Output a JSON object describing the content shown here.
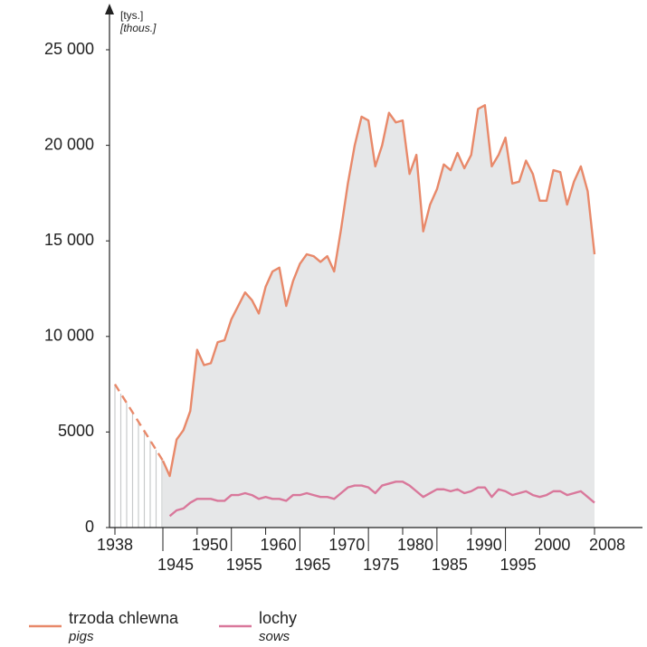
{
  "chart_data": {
    "type": "line",
    "axis_unit": "[tys.]",
    "axis_unit_en": "[thous.]",
    "xlim": [
      1938,
      2008
    ],
    "ylim": [
      0,
      25000
    ],
    "yticks": [
      0,
      5000,
      {
        "value": 10000,
        "label": "10 000"
      },
      {
        "value": 15000,
        "label": "15 000"
      },
      {
        "value": 20000,
        "label": "20 000"
      },
      {
        "value": 25000,
        "label": "25 000"
      }
    ],
    "xticks": [
      1938,
      1945,
      1950,
      1955,
      1960,
      1965,
      1970,
      1975,
      1980,
      1985,
      1990,
      1995,
      2000,
      2008
    ],
    "dashed_until": 1945,
    "area_fill": "#e6e7e8",
    "series": [
      {
        "name": "trzoda chlewna",
        "name_en": "pigs",
        "color": "#e8896a",
        "x": [
          1938,
          1945,
          1946,
          1947,
          1948,
          1949,
          1950,
          1951,
          1952,
          1953,
          1954,
          1955,
          1956,
          1957,
          1958,
          1959,
          1960,
          1961,
          1962,
          1963,
          1964,
          1965,
          1966,
          1967,
          1968,
          1969,
          1970,
          1971,
          1972,
          1973,
          1974,
          1975,
          1976,
          1977,
          1978,
          1979,
          1980,
          1981,
          1982,
          1983,
          1984,
          1985,
          1986,
          1987,
          1988,
          1989,
          1990,
          1991,
          1992,
          1993,
          1994,
          1995,
          1996,
          1997,
          1998,
          1999,
          2000,
          2001,
          2002,
          2003,
          2004,
          2005,
          2006,
          2007,
          2008
        ],
        "values": [
          7500,
          3500,
          2700,
          4600,
          5100,
          6100,
          9300,
          8500,
          8600,
          9700,
          9800,
          10900,
          11600,
          12300,
          11900,
          11200,
          12600,
          13400,
          13600,
          11600,
          12900,
          13800,
          14300,
          14200,
          13900,
          14200,
          13400,
          15600,
          18000,
          20000,
          21500,
          21300,
          18900,
          20000,
          21700,
          21200,
          21300,
          18500,
          19500,
          15500,
          16900,
          17700,
          19000,
          18700,
          19600,
          18800,
          19500,
          21900,
          22100,
          18900,
          19500,
          20400,
          18000,
          18100,
          19200,
          18500,
          17100,
          17100,
          18700,
          18600,
          16900,
          18100,
          18900,
          17600,
          14300
        ]
      },
      {
        "name": "lochy",
        "name_en": "sows",
        "color": "#d9789b",
        "x": [
          1946,
          1947,
          1948,
          1949,
          1950,
          1951,
          1952,
          1953,
          1954,
          1955,
          1956,
          1957,
          1958,
          1959,
          1960,
          1961,
          1962,
          1963,
          1964,
          1965,
          1966,
          1967,
          1968,
          1969,
          1970,
          1971,
          1972,
          1973,
          1974,
          1975,
          1976,
          1977,
          1978,
          1979,
          1980,
          1981,
          1982,
          1983,
          1984,
          1985,
          1986,
          1987,
          1988,
          1989,
          1990,
          1991,
          1992,
          1993,
          1994,
          1995,
          1996,
          1997,
          1998,
          1999,
          2000,
          2001,
          2002,
          2003,
          2004,
          2005,
          2006,
          2007,
          2008
        ],
        "values": [
          600,
          900,
          1000,
          1300,
          1500,
          1500,
          1500,
          1400,
          1400,
          1700,
          1700,
          1800,
          1700,
          1500,
          1600,
          1500,
          1500,
          1400,
          1700,
          1700,
          1800,
          1700,
          1600,
          1600,
          1500,
          1800,
          2100,
          2200,
          2200,
          2100,
          1800,
          2200,
          2300,
          2400,
          2400,
          2200,
          1900,
          1600,
          1800,
          2000,
          2000,
          1900,
          2000,
          1800,
          1900,
          2100,
          2100,
          1600,
          2000,
          1900,
          1700,
          1800,
          1900,
          1700,
          1600,
          1700,
          1900,
          1900,
          1700,
          1800,
          1900,
          1600,
          1300
        ]
      }
    ]
  }
}
